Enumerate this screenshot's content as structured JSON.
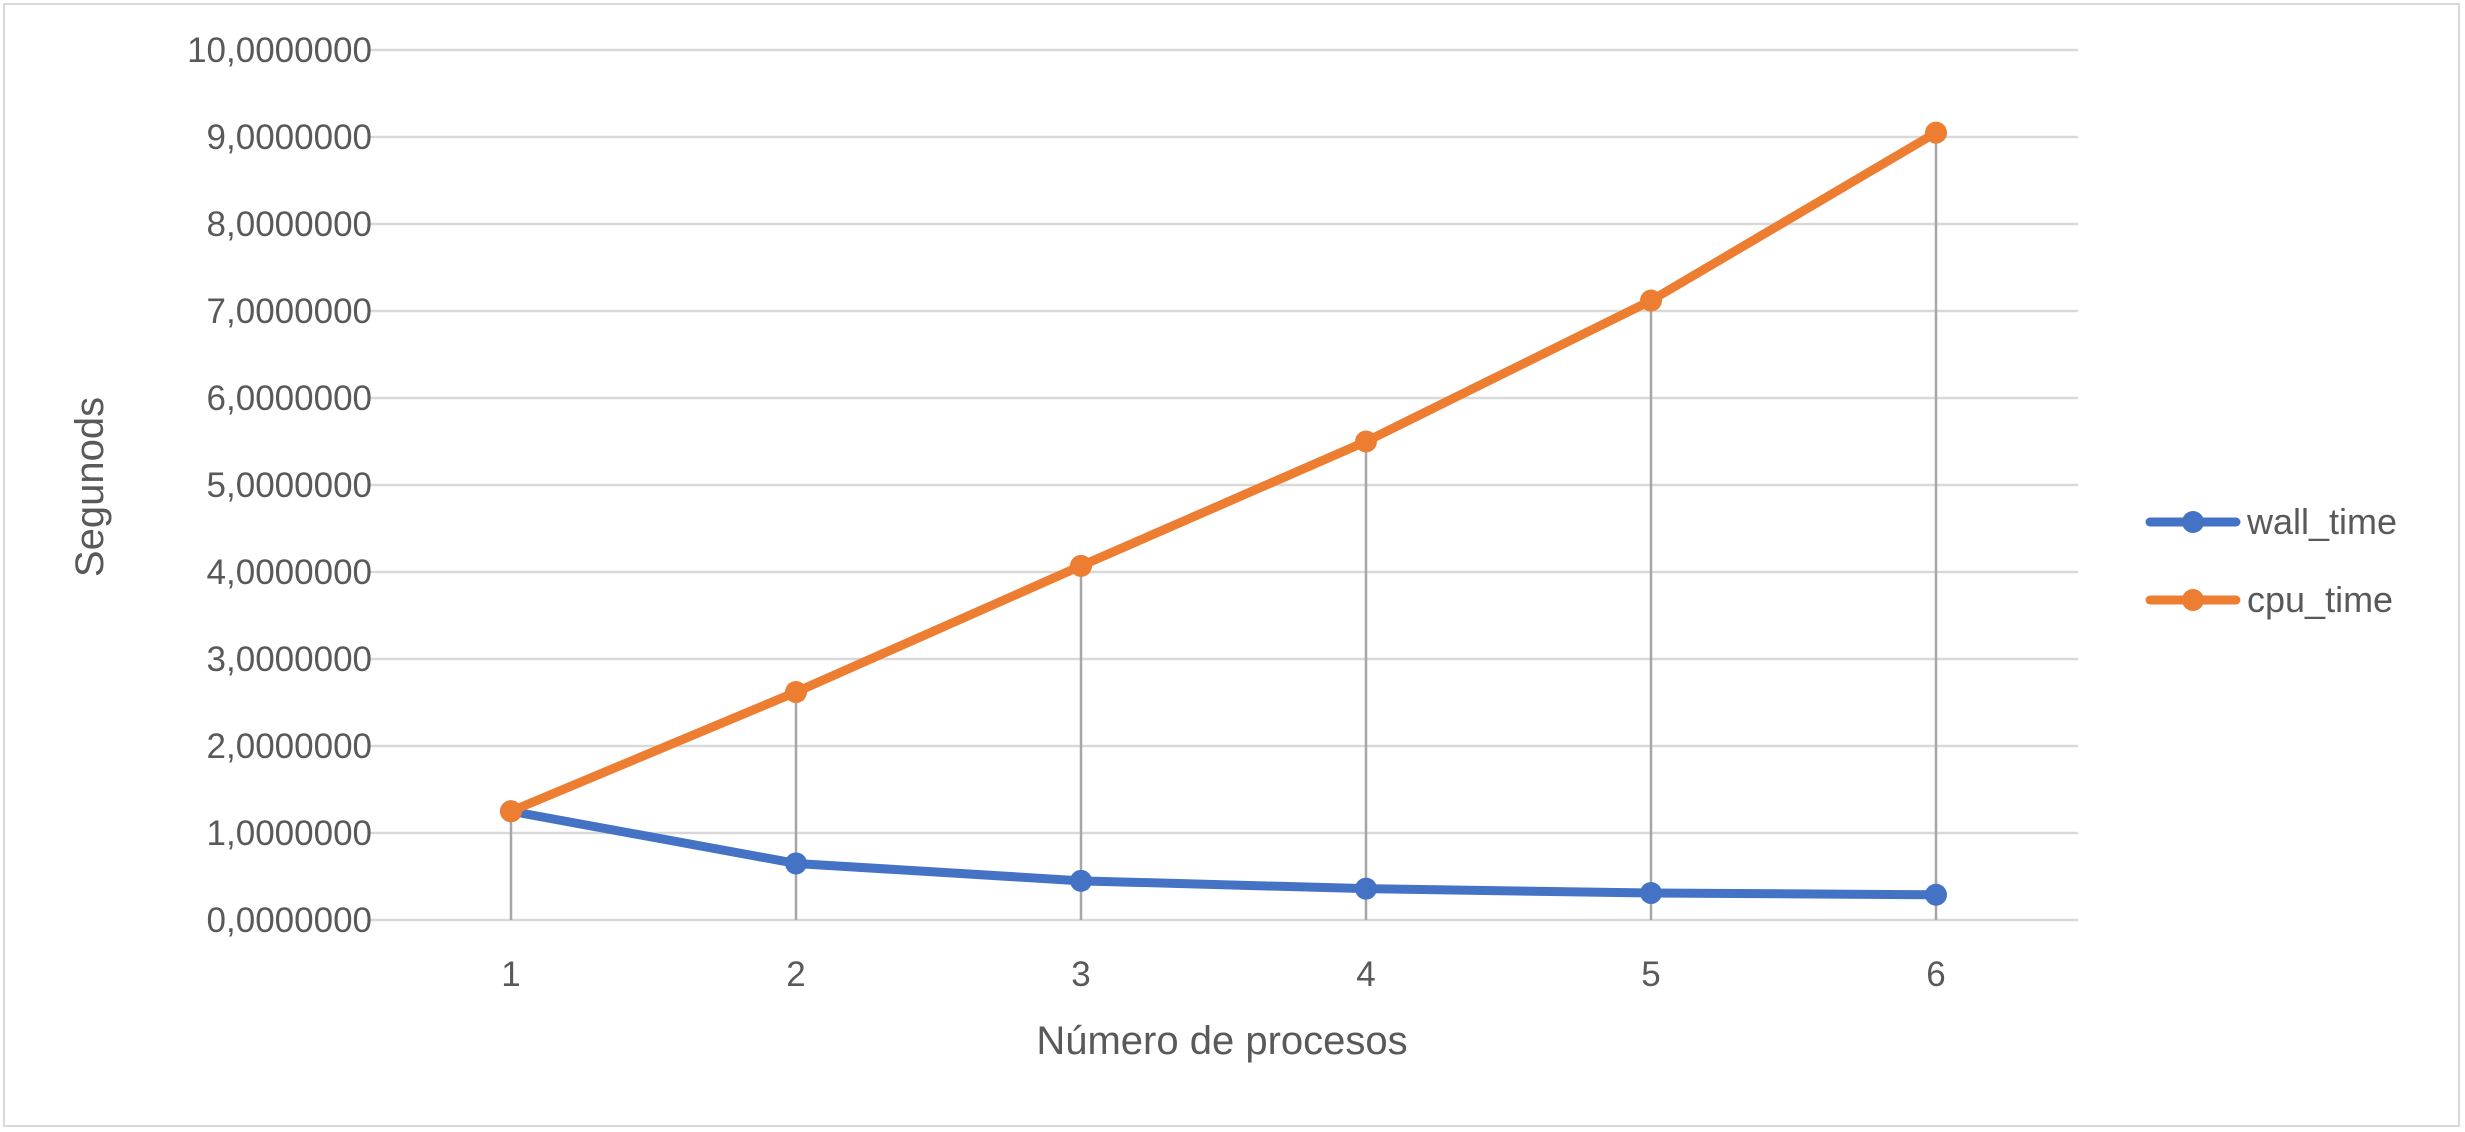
{
  "chart_data": {
    "type": "line",
    "title": "",
    "xlabel": "Número de procesos",
    "ylabel": "Segunods",
    "categories": [
      "1",
      "2",
      "3",
      "4",
      "5",
      "6"
    ],
    "ylim": [
      0,
      10
    ],
    "yticks": [
      "0,0000000",
      "1,0000000",
      "2,0000000",
      "3,0000000",
      "4,0000000",
      "5,0000000",
      "6,0000000",
      "7,0000000",
      "8,0000000",
      "9,0000000",
      "10,0000000"
    ],
    "grid": true,
    "drop_lines": true,
    "legend_position": "right",
    "series": [
      {
        "name": "wall_time",
        "color": "#4472C4",
        "values": [
          1.25,
          0.65,
          0.45,
          0.36,
          0.31,
          0.29
        ]
      },
      {
        "name": "cpu_time",
        "color": "#ED7D31",
        "values": [
          1.25,
          2.62,
          4.07,
          5.5,
          7.12,
          9.05
        ]
      }
    ]
  }
}
